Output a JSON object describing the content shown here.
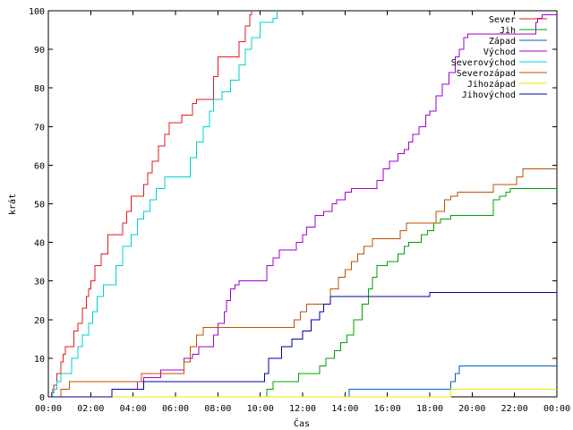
{
  "chart_data": {
    "type": "line",
    "xlabel": "Čas",
    "ylabel": "krát",
    "xlim": [
      0,
      24
    ],
    "ylim": [
      0,
      100
    ],
    "grid": false,
    "legend_position": "top-right",
    "x_ticks": [
      {
        "value": 0,
        "label": "00:00"
      },
      {
        "value": 2,
        "label": "02:00"
      },
      {
        "value": 4,
        "label": "04:00"
      },
      {
        "value": 6,
        "label": "06:00"
      },
      {
        "value": 8,
        "label": "08:00"
      },
      {
        "value": 10,
        "label": "10:00"
      },
      {
        "value": 12,
        "label": "12:00"
      },
      {
        "value": 14,
        "label": "14:00"
      },
      {
        "value": 16,
        "label": "16:00"
      },
      {
        "value": 18,
        "label": "18:00"
      },
      {
        "value": 20,
        "label": "20:00"
      },
      {
        "value": 22,
        "label": "22:00"
      },
      {
        "value": 24,
        "label": "00:00"
      }
    ],
    "y_ticks": [
      0,
      10,
      20,
      30,
      40,
      50,
      60,
      70,
      80,
      90,
      100
    ],
    "series": [
      {
        "name": "Sever",
        "color": "#e41a1c",
        "points": [
          [
            0,
            0
          ],
          [
            0.15,
            1
          ],
          [
            0.25,
            3
          ],
          [
            0.4,
            6
          ],
          [
            0.6,
            9
          ],
          [
            0.7,
            11
          ],
          [
            0.8,
            13
          ],
          [
            1.0,
            13
          ],
          [
            1.2,
            17
          ],
          [
            1.4,
            19
          ],
          [
            1.6,
            23
          ],
          [
            1.8,
            26
          ],
          [
            1.9,
            28
          ],
          [
            2.0,
            30
          ],
          [
            2.2,
            34
          ],
          [
            2.4,
            34
          ],
          [
            2.5,
            37
          ],
          [
            2.8,
            42
          ],
          [
            3.3,
            42
          ],
          [
            3.5,
            45
          ],
          [
            3.7,
            48
          ],
          [
            3.9,
            52
          ],
          [
            4.4,
            52
          ],
          [
            4.5,
            55
          ],
          [
            4.7,
            58
          ],
          [
            4.9,
            61
          ],
          [
            5.2,
            65
          ],
          [
            5.5,
            68
          ],
          [
            5.7,
            71
          ],
          [
            6.2,
            71
          ],
          [
            6.3,
            73
          ],
          [
            6.6,
            73
          ],
          [
            6.8,
            76
          ],
          [
            7.0,
            77
          ],
          [
            7.5,
            77
          ],
          [
            7.8,
            83
          ],
          [
            8.0,
            88
          ],
          [
            8.9,
            88
          ],
          [
            9.0,
            92
          ],
          [
            9.3,
            96
          ],
          [
            9.5,
            99
          ],
          [
            9.6,
            100
          ]
        ]
      },
      {
        "name": "Jih",
        "color": "#00a000",
        "points": [
          [
            0,
            0
          ],
          [
            10.1,
            0
          ],
          [
            10.3,
            2
          ],
          [
            10.6,
            4
          ],
          [
            11.5,
            4
          ],
          [
            11.8,
            6
          ],
          [
            12.5,
            6
          ],
          [
            12.8,
            8
          ],
          [
            13.1,
            10
          ],
          [
            13.5,
            12
          ],
          [
            13.8,
            14
          ],
          [
            14.1,
            16
          ],
          [
            14.4,
            20
          ],
          [
            14.8,
            24
          ],
          [
            15.1,
            28
          ],
          [
            15.3,
            31
          ],
          [
            15.5,
            34
          ],
          [
            16.0,
            35
          ],
          [
            16.5,
            37
          ],
          [
            16.8,
            39
          ],
          [
            17.0,
            40
          ],
          [
            17.6,
            42
          ],
          [
            17.9,
            43
          ],
          [
            18.2,
            45
          ],
          [
            18.5,
            46
          ],
          [
            19.0,
            47
          ],
          [
            20.8,
            47
          ],
          [
            21.0,
            51
          ],
          [
            21.3,
            52
          ],
          [
            21.6,
            53
          ],
          [
            21.8,
            54
          ],
          [
            24,
            54
          ]
        ]
      },
      {
        "name": "Západ",
        "color": "#0060c0",
        "points": [
          [
            0,
            0
          ],
          [
            14.1,
            0
          ],
          [
            14.2,
            2
          ],
          [
            18.9,
            2
          ],
          [
            19.0,
            4
          ],
          [
            19.2,
            6
          ],
          [
            19.4,
            8
          ],
          [
            24,
            8
          ]
        ]
      },
      {
        "name": "Východ",
        "color": "#a000d0",
        "points": [
          [
            0,
            0
          ],
          [
            2.9,
            0
          ],
          [
            3.0,
            2
          ],
          [
            4.2,
            4
          ],
          [
            4.5,
            5
          ],
          [
            5.0,
            5
          ],
          [
            5.3,
            7
          ],
          [
            6.2,
            7
          ],
          [
            6.4,
            10
          ],
          [
            6.8,
            11
          ],
          [
            7.1,
            13
          ],
          [
            7.5,
            13
          ],
          [
            7.8,
            16
          ],
          [
            8.0,
            19
          ],
          [
            8.3,
            22
          ],
          [
            8.4,
            25
          ],
          [
            8.6,
            28
          ],
          [
            8.8,
            29
          ],
          [
            9.0,
            30
          ],
          [
            10.0,
            30
          ],
          [
            10.3,
            34
          ],
          [
            10.6,
            36
          ],
          [
            10.9,
            38
          ],
          [
            11.5,
            38
          ],
          [
            11.7,
            40
          ],
          [
            12.0,
            42
          ],
          [
            12.2,
            44
          ],
          [
            12.6,
            47
          ],
          [
            13.0,
            48
          ],
          [
            13.4,
            50
          ],
          [
            13.6,
            51
          ],
          [
            14.0,
            53
          ],
          [
            14.3,
            54
          ],
          [
            15.3,
            54
          ],
          [
            15.5,
            56
          ],
          [
            15.8,
            59
          ],
          [
            16.1,
            61
          ],
          [
            16.5,
            63
          ],
          [
            16.8,
            64
          ],
          [
            17.0,
            66
          ],
          [
            17.2,
            68
          ],
          [
            17.5,
            70
          ],
          [
            17.8,
            73
          ],
          [
            18.0,
            74
          ],
          [
            18.3,
            78
          ],
          [
            18.6,
            81
          ],
          [
            18.9,
            84
          ],
          [
            19.2,
            88
          ],
          [
            19.4,
            90
          ],
          [
            19.6,
            93
          ],
          [
            19.8,
            94
          ],
          [
            22.8,
            94
          ],
          [
            23.0,
            97
          ],
          [
            23.1,
            98
          ],
          [
            23.3,
            99
          ],
          [
            24,
            99
          ]
        ]
      },
      {
        "name": "Severovýchod",
        "color": "#00d0d0",
        "points": [
          [
            0,
            0
          ],
          [
            0.2,
            2
          ],
          [
            0.4,
            4
          ],
          [
            0.6,
            6
          ],
          [
            0.9,
            6
          ],
          [
            1.1,
            10
          ],
          [
            1.4,
            13
          ],
          [
            1.6,
            16
          ],
          [
            1.9,
            19
          ],
          [
            2.1,
            22
          ],
          [
            2.3,
            26
          ],
          [
            2.6,
            29
          ],
          [
            3.0,
            29
          ],
          [
            3.2,
            34
          ],
          [
            3.5,
            39
          ],
          [
            3.9,
            42
          ],
          [
            4.2,
            46
          ],
          [
            4.5,
            48
          ],
          [
            4.8,
            51
          ],
          [
            5.1,
            54
          ],
          [
            5.5,
            57
          ],
          [
            6.4,
            57
          ],
          [
            6.7,
            62
          ],
          [
            7.0,
            66
          ],
          [
            7.3,
            70
          ],
          [
            7.6,
            74
          ],
          [
            7.8,
            77
          ],
          [
            8.0,
            77
          ],
          [
            8.2,
            79
          ],
          [
            8.6,
            82
          ],
          [
            9.0,
            86
          ],
          [
            9.3,
            90
          ],
          [
            9.6,
            93
          ],
          [
            10.0,
            97
          ],
          [
            10.6,
            98
          ],
          [
            10.8,
            100
          ]
        ]
      },
      {
        "name": "Severozápad",
        "color": "#c05000",
        "points": [
          [
            0,
            0
          ],
          [
            0.5,
            0
          ],
          [
            0.6,
            2
          ],
          [
            1.0,
            4
          ],
          [
            4.2,
            4
          ],
          [
            4.4,
            6
          ],
          [
            6.2,
            6
          ],
          [
            6.4,
            9
          ],
          [
            6.7,
            13
          ],
          [
            7.0,
            16
          ],
          [
            7.3,
            18
          ],
          [
            11.4,
            18
          ],
          [
            11.6,
            20
          ],
          [
            11.9,
            22
          ],
          [
            12.2,
            24
          ],
          [
            13.1,
            24
          ],
          [
            13.3,
            28
          ],
          [
            13.7,
            31
          ],
          [
            14.0,
            33
          ],
          [
            14.3,
            35
          ],
          [
            14.6,
            37
          ],
          [
            14.9,
            39
          ],
          [
            15.3,
            41
          ],
          [
            16.4,
            41
          ],
          [
            16.6,
            43
          ],
          [
            16.9,
            45
          ],
          [
            18.1,
            45
          ],
          [
            18.3,
            48
          ],
          [
            18.7,
            51
          ],
          [
            19.0,
            52
          ],
          [
            19.3,
            53
          ],
          [
            20.8,
            53
          ],
          [
            21.0,
            55
          ],
          [
            21.8,
            55
          ],
          [
            22.1,
            57
          ],
          [
            22.4,
            59
          ],
          [
            24,
            59
          ]
        ]
      },
      {
        "name": "Jihozápad",
        "color": "#e8e800",
        "points": [
          [
            0,
            0
          ],
          [
            18.9,
            0
          ],
          [
            19.0,
            2
          ],
          [
            24,
            2
          ]
        ]
      },
      {
        "name": "Jihovýchod",
        "color": "#0000a0",
        "points": [
          [
            0,
            0
          ],
          [
            2.8,
            0
          ],
          [
            3.0,
            2
          ],
          [
            4.2,
            2
          ],
          [
            4.5,
            4
          ],
          [
            10.0,
            4
          ],
          [
            10.2,
            6
          ],
          [
            10.4,
            10
          ],
          [
            10.8,
            10
          ],
          [
            11.0,
            13
          ],
          [
            11.2,
            13
          ],
          [
            11.5,
            15
          ],
          [
            12.0,
            17
          ],
          [
            12.4,
            20
          ],
          [
            12.8,
            22
          ],
          [
            13.0,
            24
          ],
          [
            13.3,
            26
          ],
          [
            15.9,
            26
          ],
          [
            16.1,
            26
          ],
          [
            17.8,
            26
          ],
          [
            18.0,
            27
          ],
          [
            24,
            27
          ]
        ]
      }
    ]
  }
}
